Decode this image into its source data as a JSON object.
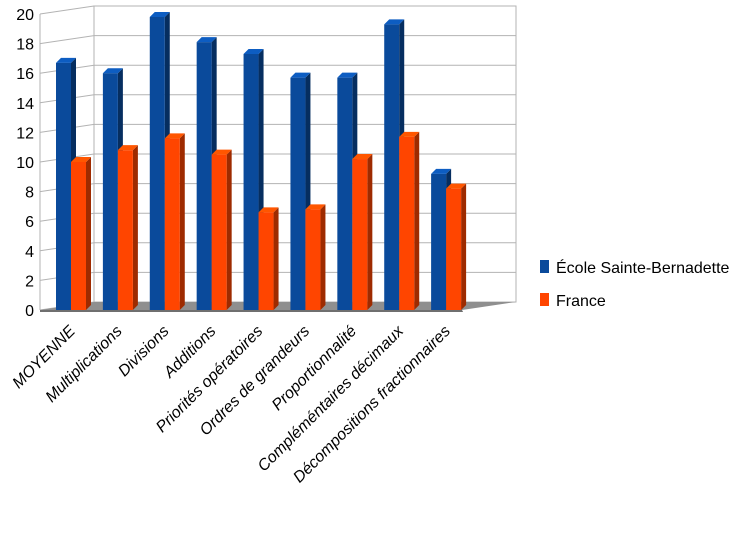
{
  "chart_data": {
    "type": "bar",
    "categories": [
      "MOYENNE",
      "Multiplications",
      "Divisions",
      "Additions",
      "Priorités opératoires",
      "Ordres de grandeurs",
      "Proportionnalité",
      "Compléméntaires décimaux",
      "Décompositions fractionnaires"
    ],
    "series": [
      {
        "name": "École Sainte-Bernadette",
        "values": [
          16.7,
          16.0,
          19.8,
          18.1,
          17.3,
          15.7,
          15.7,
          19.3,
          9.2
        ],
        "color": "#0a4a9b"
      },
      {
        "name": "France",
        "values": [
          10.0,
          10.8,
          11.6,
          10.5,
          6.6,
          6.8,
          10.2,
          11.7,
          8.2
        ],
        "color": "#ff4500"
      }
    ],
    "y_ticks": [
      "0",
      "2",
      "4",
      "6",
      "8",
      "10",
      "12",
      "14",
      "16",
      "18",
      "20"
    ],
    "ylim": [
      0,
      20
    ],
    "grid": true,
    "legend_position": "right"
  }
}
